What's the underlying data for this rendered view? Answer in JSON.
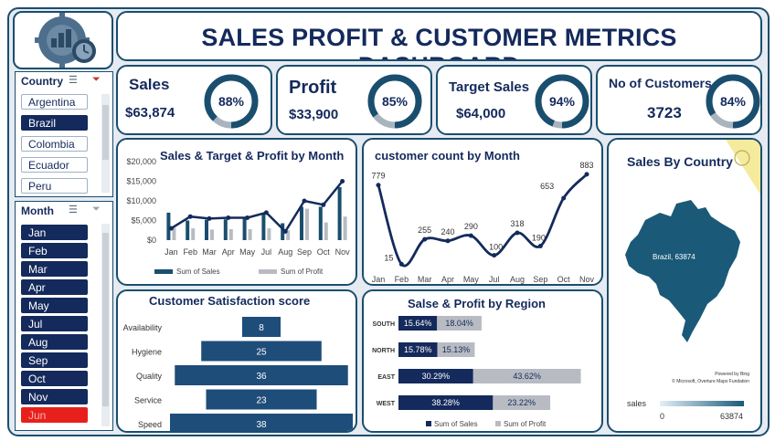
{
  "header": {
    "title": "SALES PROFIT & CUSTOMER METRICS DASHBOARD"
  },
  "kpis": [
    {
      "label": "Sales",
      "value": "$63,874",
      "pct": 88,
      "pct_label": "88%"
    },
    {
      "label": "Profit",
      "value": "$33,900",
      "pct": 85,
      "pct_label": "85%"
    },
    {
      "label": "Target Sales",
      "value": "$64,000",
      "pct": 94,
      "pct_label": "94%"
    },
    {
      "label": "No of Customers",
      "value": "3723",
      "pct": 84,
      "pct_label": "84%"
    }
  ],
  "country_slicer": {
    "title": "Country",
    "items": [
      {
        "label": "Argentina",
        "selected": false
      },
      {
        "label": "Brazil",
        "selected": true
      },
      {
        "label": "Colombia",
        "selected": false
      },
      {
        "label": "Ecuador",
        "selected": false
      },
      {
        "label": "Peru",
        "selected": false
      }
    ]
  },
  "month_slicer": {
    "title": "Month",
    "items": [
      {
        "label": "Jan",
        "state": "on"
      },
      {
        "label": "Feb",
        "state": "on"
      },
      {
        "label": "Mar",
        "state": "on"
      },
      {
        "label": "Apr",
        "state": "on"
      },
      {
        "label": "May",
        "state": "on"
      },
      {
        "label": "Jul",
        "state": "on"
      },
      {
        "label": "Aug",
        "state": "on"
      },
      {
        "label": "Sep",
        "state": "on"
      },
      {
        "label": "Oct",
        "state": "on"
      },
      {
        "label": "Nov",
        "state": "on"
      },
      {
        "label": "Jun",
        "state": "red"
      }
    ]
  },
  "colors": {
    "navy": "#142a5c",
    "teal": "#1a4e6e",
    "gray": "#b8bcc2",
    "donut_track": "#a9b4be"
  },
  "chart_data": [
    {
      "type": "bar",
      "title": "Sales & Target & Profit by Month",
      "categories": [
        "Jan",
        "Feb",
        "Mar",
        "Apr",
        "May",
        "Jul",
        "Aug",
        "Sep",
        "Oct",
        "Nov"
      ],
      "y_ticks": [
        "$20,000",
        "$15,000",
        "$10,000",
        "$5,000",
        "$0"
      ],
      "ylim": [
        0,
        20000
      ],
      "series": [
        {
          "name": "Sum of Sales",
          "values": [
            7000,
            5000,
            5200,
            5300,
            5700,
            6800,
            4300,
            8500,
            8500,
            13500
          ]
        },
        {
          "name": "Sum of Profit",
          "values": [
            3200,
            3000,
            2700,
            2800,
            2800,
            3000,
            2500,
            8000,
            4500,
            6000
          ]
        },
        {
          "values": [
            3000,
            6000,
            5500,
            5700,
            5700,
            7000,
            2200,
            10000,
            9000,
            15000
          ]
        }
      ],
      "legend": [
        "Sum of Sales",
        "Sum of Profit"
      ]
    },
    {
      "type": "line",
      "title": "customer count by Month",
      "categories": [
        "Jan",
        "Feb",
        "Mar",
        "Apr",
        "May",
        "Jul",
        "Aug",
        "Sep",
        "Oct",
        "Nov"
      ],
      "values": [
        779,
        15,
        255,
        240,
        290,
        100,
        318,
        190,
        653,
        883
      ],
      "labels": [
        "779",
        "15",
        "255",
        "240",
        "290",
        "100",
        "318",
        "190",
        "653",
        "883"
      ],
      "ylim": [
        0,
        900
      ]
    },
    {
      "type": "bar",
      "title": "Customer Satisfaction score",
      "categories": [
        "Availability",
        "Hygiene",
        "Quality",
        "Service",
        "Speed"
      ],
      "values": [
        8,
        25,
        36,
        23,
        38
      ],
      "labels": [
        "8",
        "25",
        "36",
        "23",
        "38"
      ]
    },
    {
      "type": "bar",
      "title": "Salse & Profit by Region",
      "categories": [
        "SOUTH",
        "NORTH",
        "EAST",
        "WEST"
      ],
      "series": [
        {
          "name": "Sum of Sales",
          "values": [
            15.64,
            15.78,
            30.29,
            38.28
          ],
          "labels": [
            "15.64%",
            "15.78%",
            "30.29%",
            "38.28%"
          ]
        },
        {
          "name": "Sum of Profit",
          "values": [
            18.04,
            15.13,
            43.62,
            23.22
          ],
          "labels": [
            "18.04%",
            "15.13%",
            "43.62%",
            "23.22%"
          ]
        }
      ],
      "legend": [
        "Sum of Sales",
        "Sum of Profit"
      ]
    },
    {
      "type": "map",
      "title": "Sales By Country",
      "region_label": "Brazil, 63874",
      "credit_1": "Powered by Bing",
      "credit_2": "© Microsoft, Overture Maps Fundation",
      "legend_title": "sales",
      "legend_min": "0",
      "legend_max": "63874"
    }
  ]
}
